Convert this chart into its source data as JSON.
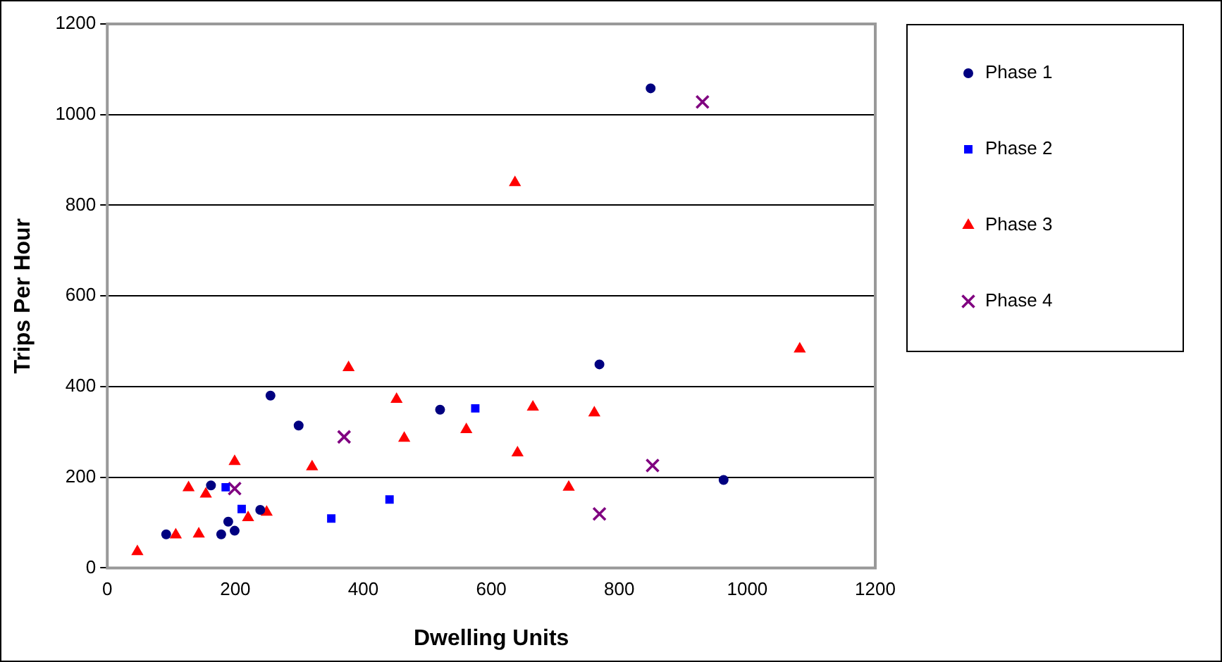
{
  "chart_data": {
    "type": "scatter",
    "xlabel": "Dwelling Units",
    "ylabel": "Trips Per Hour",
    "xlim": [
      0,
      1200
    ],
    "xticks": [
      0,
      200,
      400,
      600,
      800,
      1000,
      1200
    ],
    "ylim": [
      0,
      1200
    ],
    "yticks": [
      0,
      200,
      400,
      600,
      800,
      1000,
      1200
    ],
    "grid": "y",
    "legend": "right",
    "series": [
      {
        "name": "Phase 1",
        "color": "#000080",
        "marker": "circle",
        "x": [
          92,
          162,
          255,
          299,
          189,
          178,
          199,
          239,
          520,
          769,
          963,
          849
        ],
        "values": [
          74,
          182,
          380,
          314,
          102,
          74,
          82,
          128,
          349,
          449,
          194,
          1058
        ]
      },
      {
        "name": "Phase 2",
        "color": "#0000ff",
        "marker": "square",
        "x": [
          185,
          210,
          350,
          441,
          575
        ],
        "values": [
          178,
          130,
          109,
          151,
          352
        ]
      },
      {
        "name": "Phase 3",
        "color": "#ff0000",
        "marker": "triangle",
        "x": [
          47,
          107,
          143,
          127,
          154,
          199,
          220,
          249,
          320,
          377,
          452,
          464,
          561,
          665,
          641,
          761,
          721,
          1082,
          637
        ],
        "values": [
          36,
          73,
          75,
          177,
          163,
          235,
          111,
          123,
          223,
          442,
          372,
          286,
          305,
          355,
          254,
          342,
          178,
          483,
          850
        ]
      },
      {
        "name": "Phase 4",
        "color": "#800080",
        "marker": "cross",
        "x": [
          199,
          370,
          852,
          769,
          930
        ],
        "values": [
          175,
          289,
          226,
          119,
          1028
        ]
      }
    ]
  }
}
